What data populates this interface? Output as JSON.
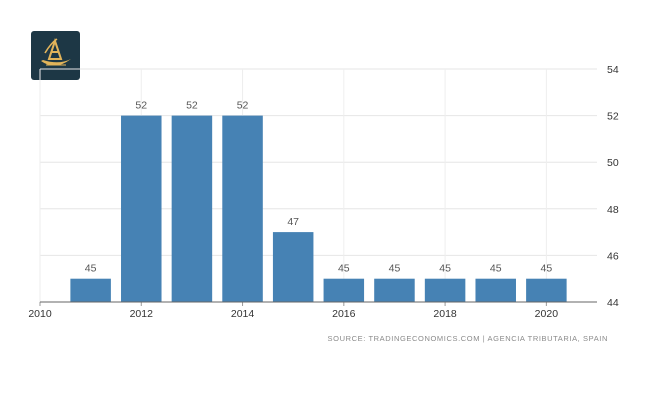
{
  "logo": {
    "name": "brand-logo",
    "background": "#1d3745",
    "accent": "#e2b45a"
  },
  "source_text": "SOURCE: TRADINGECONOMICS.COM  |  AGENCIA TRIBUTARIA, SPAIN",
  "chart_data": {
    "type": "bar",
    "title": "",
    "xlabel": "",
    "ylabel": "",
    "x": [
      2011,
      2012,
      2013,
      2014,
      2015,
      2016,
      2017,
      2018,
      2019,
      2020
    ],
    "values": [
      45,
      52,
      52,
      52,
      47,
      45,
      45,
      45,
      45,
      45
    ],
    "data_labels": [
      "45",
      "52",
      "52",
      "52",
      "47",
      "45",
      "45",
      "45",
      "45",
      "45"
    ],
    "xlim": [
      2010,
      2021
    ],
    "ylim": [
      44,
      54
    ],
    "x_ticks": [
      "2010",
      "2012",
      "2014",
      "2016",
      "2018",
      "2020"
    ],
    "y_ticks": [
      "44",
      "46",
      "48",
      "50",
      "52",
      "54"
    ],
    "y_axis_side": "right",
    "bar_color": "#4682b4",
    "grid": true,
    "legend": "none"
  }
}
